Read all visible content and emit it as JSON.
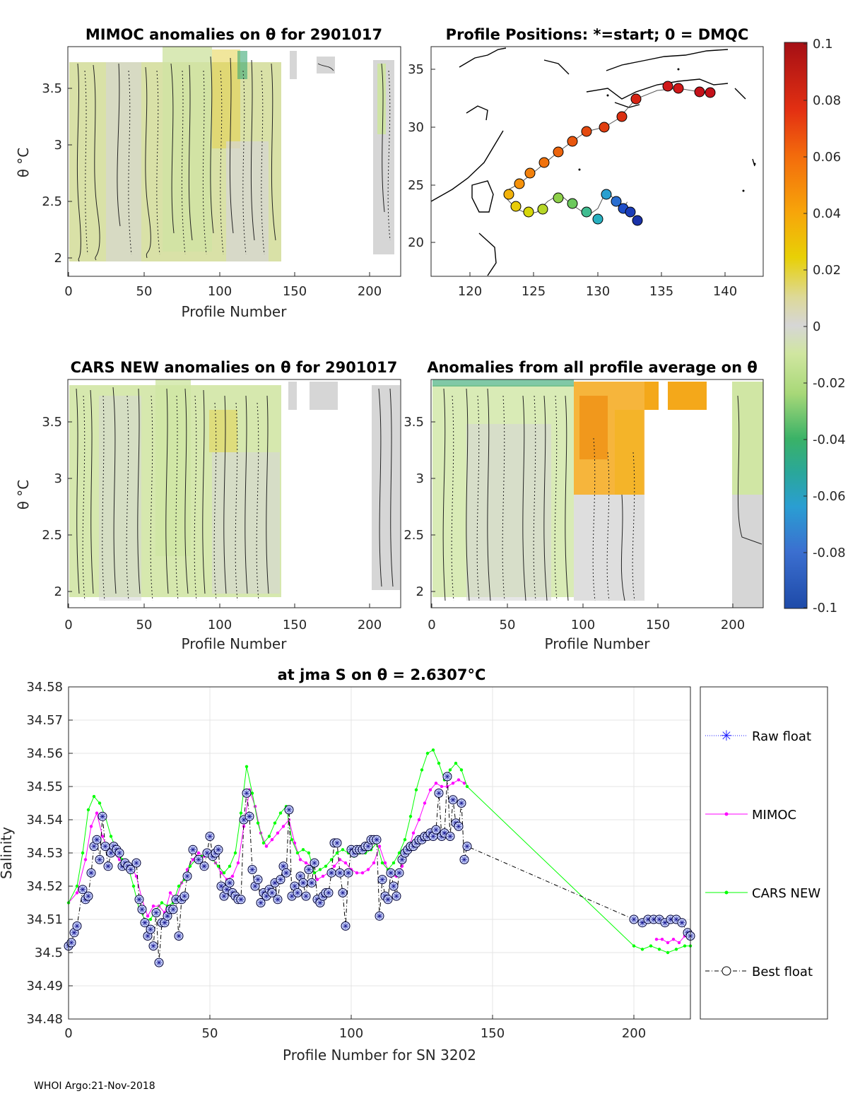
{
  "footer": "WHOI Argo:21-Nov-2018",
  "colorbar": {
    "ticks": [
      "0.1",
      "0.08",
      "0.06",
      "0.04",
      "0.02",
      "0",
      "-0.02",
      "-0.04",
      "-0.06",
      "-0.08",
      "-0.1"
    ]
  },
  "panels": {
    "mimoc": {
      "title": "MIMOC anomalies on θ  for 2901017",
      "xlabel": "Profile Number",
      "ylabel": "θ °C",
      "xticks": [
        "0",
        "50",
        "100",
        "150",
        "200"
      ],
      "yticks": [
        "3.5",
        "3",
        "2.5",
        "2"
      ]
    },
    "map": {
      "title": "Profile Positions: *=start; 0 = DMQC",
      "xticks": [
        "120",
        "125",
        "130",
        "135",
        "140"
      ],
      "yticks": [
        "35",
        "30",
        "25",
        "20"
      ]
    },
    "cars": {
      "title": "CARS NEW anomalies on θ for 2901017",
      "xlabel": "Profile Number",
      "ylabel": "θ °C",
      "xticks": [
        "0",
        "50",
        "100",
        "150",
        "200"
      ],
      "yticks": [
        "3.5",
        "3",
        "2.5",
        "2"
      ]
    },
    "avg": {
      "title": "Anomalies from all profile average on θ",
      "xlabel": "Profile Number",
      "xticks": [
        "0",
        "50",
        "100",
        "150",
        "200"
      ],
      "yticks": [
        "3.5",
        "3",
        "2.5",
        "2"
      ]
    }
  },
  "chart_data": {
    "type": "line",
    "title": "at jma S on θ = 2.6307°C",
    "xlabel": "Profile Number for SN 3202",
    "ylabel": "Salinity",
    "xlim": [
      0,
      220
    ],
    "ylim": [
      34.48,
      34.58
    ],
    "xticks": [
      "0",
      "50",
      "100",
      "150",
      "200"
    ],
    "yticks": [
      "34.58",
      "34.57",
      "34.56",
      "34.55",
      "34.54",
      "34.53",
      "34.52",
      "34.51",
      "34.5",
      "34.49",
      "34.48"
    ],
    "legend": [
      "Raw float",
      "MIMOC",
      "CARS NEW",
      "Best float"
    ],
    "series": [
      {
        "name": "MIMOC",
        "color": "#ff00ff",
        "x": [
          0,
          3,
          6,
          8,
          10,
          12,
          14,
          16,
          18,
          20,
          22,
          24,
          26,
          28,
          30,
          32,
          34,
          36,
          38,
          40,
          42,
          44,
          46,
          48,
          50,
          52,
          54,
          56,
          58,
          60,
          62,
          64,
          66,
          68,
          70,
          72,
          74,
          76,
          78,
          80,
          82,
          84,
          86,
          88,
          90,
          92,
          94,
          96,
          98,
          100,
          102,
          104,
          106,
          108,
          110,
          112,
          114,
          116,
          118,
          120,
          122,
          124,
          126,
          128,
          130,
          132,
          134,
          136,
          138,
          140
        ],
        "y": [
          34.515,
          34.518,
          34.528,
          34.538,
          34.542,
          34.535,
          34.531,
          34.53,
          34.528,
          34.527,
          34.526,
          34.523,
          34.516,
          34.511,
          34.514,
          34.514,
          34.512,
          34.518,
          34.516,
          34.521,
          34.525,
          34.528,
          34.53,
          34.529,
          34.53,
          34.527,
          34.524,
          34.522,
          34.523,
          34.527,
          34.538,
          34.549,
          34.544,
          34.536,
          34.532,
          34.534,
          34.536,
          34.538,
          34.54,
          34.533,
          34.528,
          34.527,
          34.526,
          34.522,
          34.523,
          34.524,
          34.526,
          34.528,
          34.527,
          34.525,
          34.524,
          34.524,
          34.525,
          34.527,
          34.532,
          34.527,
          34.523,
          34.523,
          34.526,
          34.53,
          34.536,
          34.54,
          34.545,
          34.549,
          34.551,
          34.55,
          34.55,
          34.551,
          34.552,
          34.551
        ]
      },
      {
        "name": "MIMOC tail",
        "color": "#ff00ff",
        "x": [
          208,
          210,
          212,
          214,
          216,
          218,
          220
        ],
        "y": [
          34.504,
          34.504,
          34.503,
          34.504,
          34.503,
          34.505,
          34.506
        ]
      },
      {
        "name": "CARS NEW",
        "color": "#00ff00",
        "x": [
          0,
          3,
          5,
          7,
          9,
          11,
          13,
          15,
          17,
          19,
          21,
          23,
          25,
          27,
          29,
          31,
          33,
          35,
          37,
          39,
          41,
          43,
          45,
          47,
          49,
          51,
          53,
          55,
          57,
          59,
          61,
          63,
          65,
          67,
          69,
          71,
          73,
          75,
          77,
          79,
          81,
          83,
          85,
          87,
          89,
          91,
          93,
          95,
          97,
          99,
          101,
          103,
          105,
          107,
          109,
          111,
          113,
          115,
          117,
          119,
          121,
          123,
          125,
          127,
          129,
          131,
          133,
          135,
          137,
          139,
          141,
          200,
          203,
          206,
          209,
          212,
          215,
          218,
          220
        ],
        "y": [
          34.515,
          34.52,
          34.53,
          34.543,
          34.547,
          34.545,
          34.541,
          34.535,
          34.531,
          34.528,
          34.526,
          34.52,
          34.513,
          34.51,
          34.51,
          34.513,
          34.515,
          34.514,
          34.515,
          34.52,
          34.522,
          34.526,
          34.528,
          34.529,
          34.53,
          34.528,
          34.526,
          34.524,
          34.526,
          34.53,
          34.542,
          34.556,
          34.548,
          34.539,
          34.533,
          34.535,
          34.539,
          34.542,
          34.544,
          34.534,
          34.53,
          34.531,
          34.53,
          34.524,
          34.525,
          34.526,
          34.528,
          34.53,
          34.531,
          34.53,
          34.529,
          34.53,
          34.53,
          34.531,
          34.533,
          34.527,
          34.525,
          34.527,
          34.53,
          34.534,
          34.541,
          34.549,
          34.555,
          34.56,
          34.561,
          34.557,
          34.552,
          34.555,
          34.557,
          34.555,
          34.55,
          34.502,
          34.501,
          34.502,
          34.501,
          34.5,
          34.501,
          34.502,
          34.502
        ]
      },
      {
        "name": "Best float",
        "color": "#000033",
        "x": [
          0,
          1,
          2,
          3,
          5,
          6,
          7,
          8,
          9,
          10,
          11,
          12,
          13,
          14,
          15,
          16,
          17,
          18,
          19,
          20,
          21,
          22,
          24,
          25,
          26,
          27,
          28,
          29,
          30,
          31,
          32,
          33,
          34,
          35,
          36,
          37,
          38,
          39,
          40,
          41,
          42,
          44,
          46,
          48,
          49,
          50,
          51,
          52,
          53,
          54,
          55,
          56,
          57,
          58,
          59,
          60,
          61,
          62,
          63,
          64,
          65,
          66,
          67,
          68,
          69,
          70,
          71,
          72,
          73,
          74,
          75,
          76,
          77,
          78,
          79,
          80,
          81,
          82,
          83,
          84,
          85,
          86,
          87,
          88,
          89,
          90,
          91,
          92,
          93,
          94,
          95,
          96,
          97,
          98,
          99,
          100,
          101,
          102,
          103,
          104,
          105,
          106,
          107,
          108,
          109,
          110,
          111,
          112,
          113,
          114,
          115,
          116,
          117,
          118,
          119,
          120,
          121,
          122,
          123,
          124,
          125,
          126,
          127,
          128,
          129,
          130,
          131,
          132,
          133,
          134,
          135,
          136,
          137,
          138,
          139,
          140,
          141,
          200,
          203,
          205,
          207,
          209,
          211,
          213,
          215,
          217,
          219,
          220
        ],
        "y": [
          34.502,
          34.503,
          34.506,
          34.508,
          34.519,
          34.516,
          34.517,
          34.524,
          34.532,
          34.534,
          34.528,
          34.541,
          34.532,
          34.526,
          34.53,
          34.532,
          34.531,
          34.53,
          34.526,
          34.527,
          34.526,
          34.525,
          34.527,
          34.516,
          34.513,
          34.509,
          34.505,
          34.507,
          34.502,
          34.512,
          34.497,
          34.509,
          34.509,
          34.511,
          34.513,
          34.513,
          34.516,
          34.505,
          34.516,
          34.517,
          34.523,
          34.531,
          34.528,
          34.526,
          34.53,
          34.535,
          34.529,
          34.53,
          34.531,
          34.52,
          34.517,
          34.519,
          34.521,
          34.518,
          34.517,
          34.516,
          34.516,
          34.54,
          34.548,
          34.541,
          34.525,
          34.52,
          34.522,
          34.515,
          34.518,
          34.517,
          34.519,
          34.518,
          34.521,
          34.516,
          34.522,
          34.526,
          34.524,
          34.543,
          34.517,
          34.52,
          34.518,
          34.523,
          34.521,
          34.517,
          34.525,
          34.521,
          34.527,
          34.516,
          34.515,
          34.517,
          34.518,
          34.518,
          34.524,
          34.533,
          34.533,
          34.524,
          34.518,
          34.508,
          34.524,
          34.531,
          34.53,
          34.531,
          34.531,
          34.531,
          34.532,
          34.532,
          34.534,
          34.534,
          34.534,
          34.511,
          34.522,
          34.517,
          34.516,
          34.524,
          34.52,
          34.517,
          34.524,
          34.528,
          34.53,
          34.531,
          34.532,
          34.532,
          34.533,
          34.534,
          34.534,
          34.535,
          34.535,
          34.536,
          34.535,
          34.537,
          34.548,
          34.535,
          34.536,
          34.553,
          34.535,
          34.546,
          34.539,
          34.538,
          34.545,
          34.528,
          34.532,
          34.51,
          34.509,
          34.51,
          34.51,
          34.51,
          34.509,
          34.51,
          34.51,
          34.509,
          34.506,
          34.505
        ]
      }
    ]
  }
}
